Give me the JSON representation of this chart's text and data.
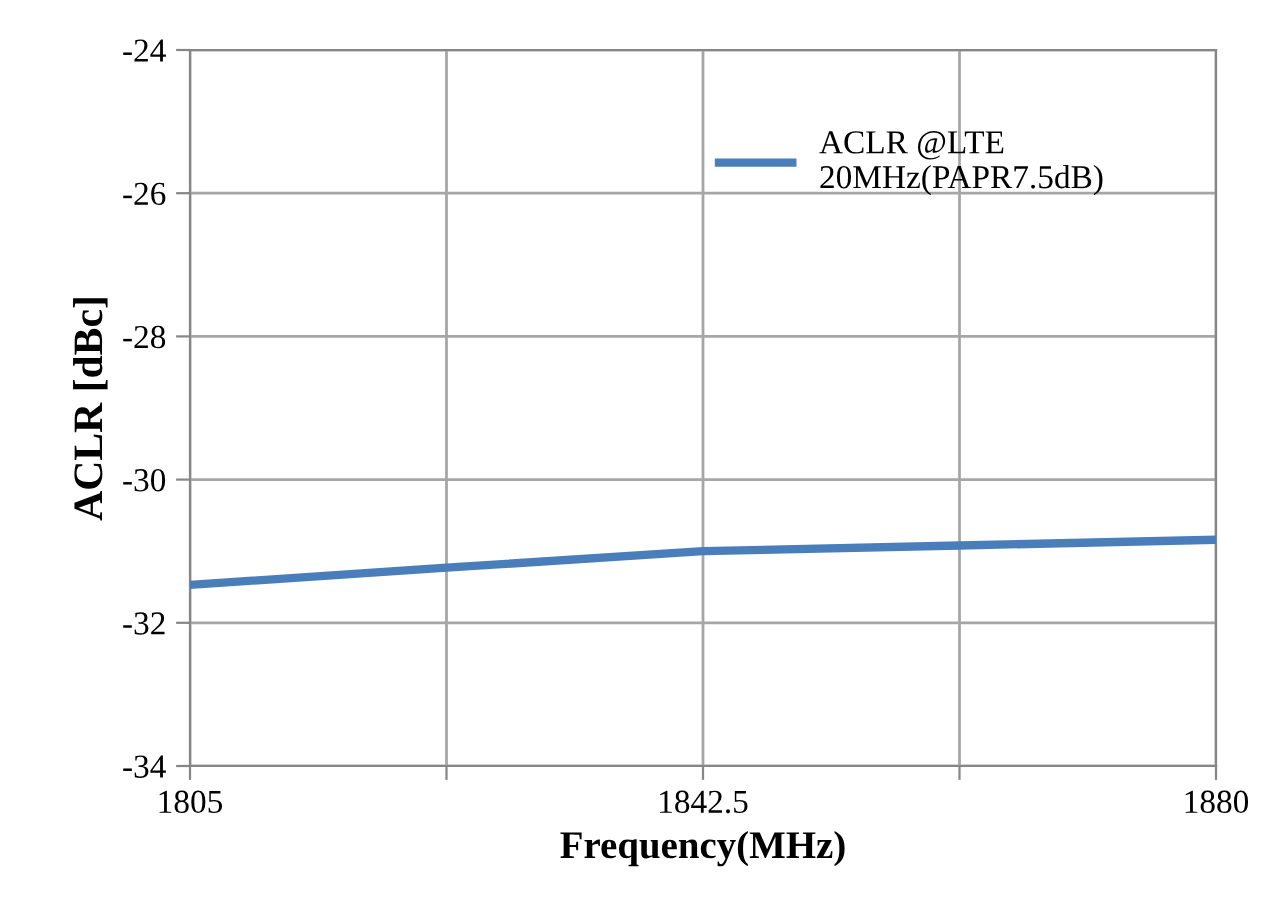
{
  "chart_data": {
    "type": "line",
    "xlabel": "Frequency(MHz)",
    "ylabel": "ACLR [dBc]",
    "x": [
      1805,
      1823.75,
      1842.5,
      1861.25,
      1880
    ],
    "series": [
      {
        "name": "ACLR @LTE\n20MHz(PAPR7.5dB)",
        "color": "#4a7ebb",
        "values": [
          -31.47,
          -31.23,
          -31.0,
          -30.92,
          -30.84
        ]
      }
    ],
    "xlim": [
      1805,
      1880
    ],
    "xticks": [
      1805,
      {
        "value": 1823.75,
        "label": null
      },
      1842.5,
      {
        "value": 1861.25,
        "label": null
      },
      1880
    ],
    "ylim": [
      -34,
      -24
    ],
    "yticks": [
      -34,
      -32,
      -30,
      -28,
      -26,
      -24
    ],
    "grid": true,
    "legend": "top right",
    "marker": "none",
    "line_style": "solid"
  }
}
